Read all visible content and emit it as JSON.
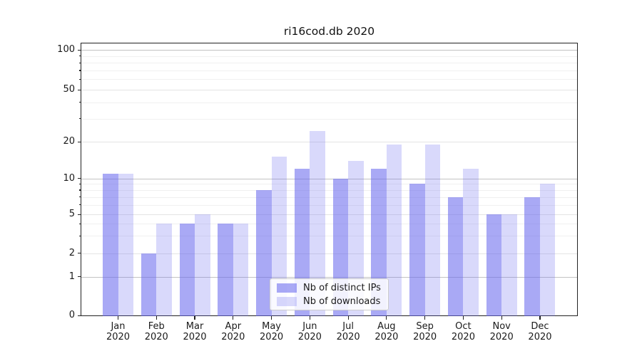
{
  "title": "ri16cod.db 2020",
  "chart_data": {
    "type": "bar",
    "title": "ri16cod.db 2020",
    "categories": [
      "Jan 2020",
      "Feb 2020",
      "Mar 2020",
      "Apr 2020",
      "May 2020",
      "Jun 2020",
      "Jul 2020",
      "Aug 2020",
      "Sep 2020",
      "Oct 2020",
      "Nov 2020",
      "Dec 2020"
    ],
    "x": {
      "months": [
        "Jan",
        "Feb",
        "Mar",
        "Apr",
        "May",
        "Jun",
        "Jul",
        "Aug",
        "Sep",
        "Oct",
        "Nov",
        "Dec"
      ],
      "year": "2020"
    },
    "series": [
      {
        "name": "Nb of distinct IPs",
        "color": "rgba(102,102,238,0.56)",
        "values": [
          11,
          2,
          4,
          4,
          8,
          12,
          10,
          12,
          9,
          7,
          5,
          7
        ]
      },
      {
        "name": "Nb of downloads",
        "color": "rgba(102,102,238,0.25)",
        "values": [
          11,
          4,
          5,
          4,
          15,
          24,
          14,
          19,
          19,
          12,
          5,
          9
        ]
      }
    ],
    "y_axis": {
      "scale": "log-with-zero-baseline",
      "labeled_ticks": [
        0,
        1,
        2,
        5,
        10,
        20,
        50,
        100
      ],
      "major_ticks": [
        1,
        10,
        100
      ],
      "minor_ticks": [
        3,
        4,
        6,
        7,
        8,
        9,
        30,
        40,
        60,
        70,
        80,
        90
      ],
      "range": [
        0,
        113
      ]
    },
    "legend": {
      "position": "lower center",
      "items": [
        "Nb of distinct IPs",
        "Nb of downloads"
      ]
    },
    "grid": true,
    "colors": {
      "bar_base": "#6666ee",
      "grid_major": "#c3c3c3",
      "grid_sub": "#e4e4e4",
      "grid_minor": "#f0f0f0",
      "axis": "#222222",
      "text": "#1a1a1a"
    }
  }
}
